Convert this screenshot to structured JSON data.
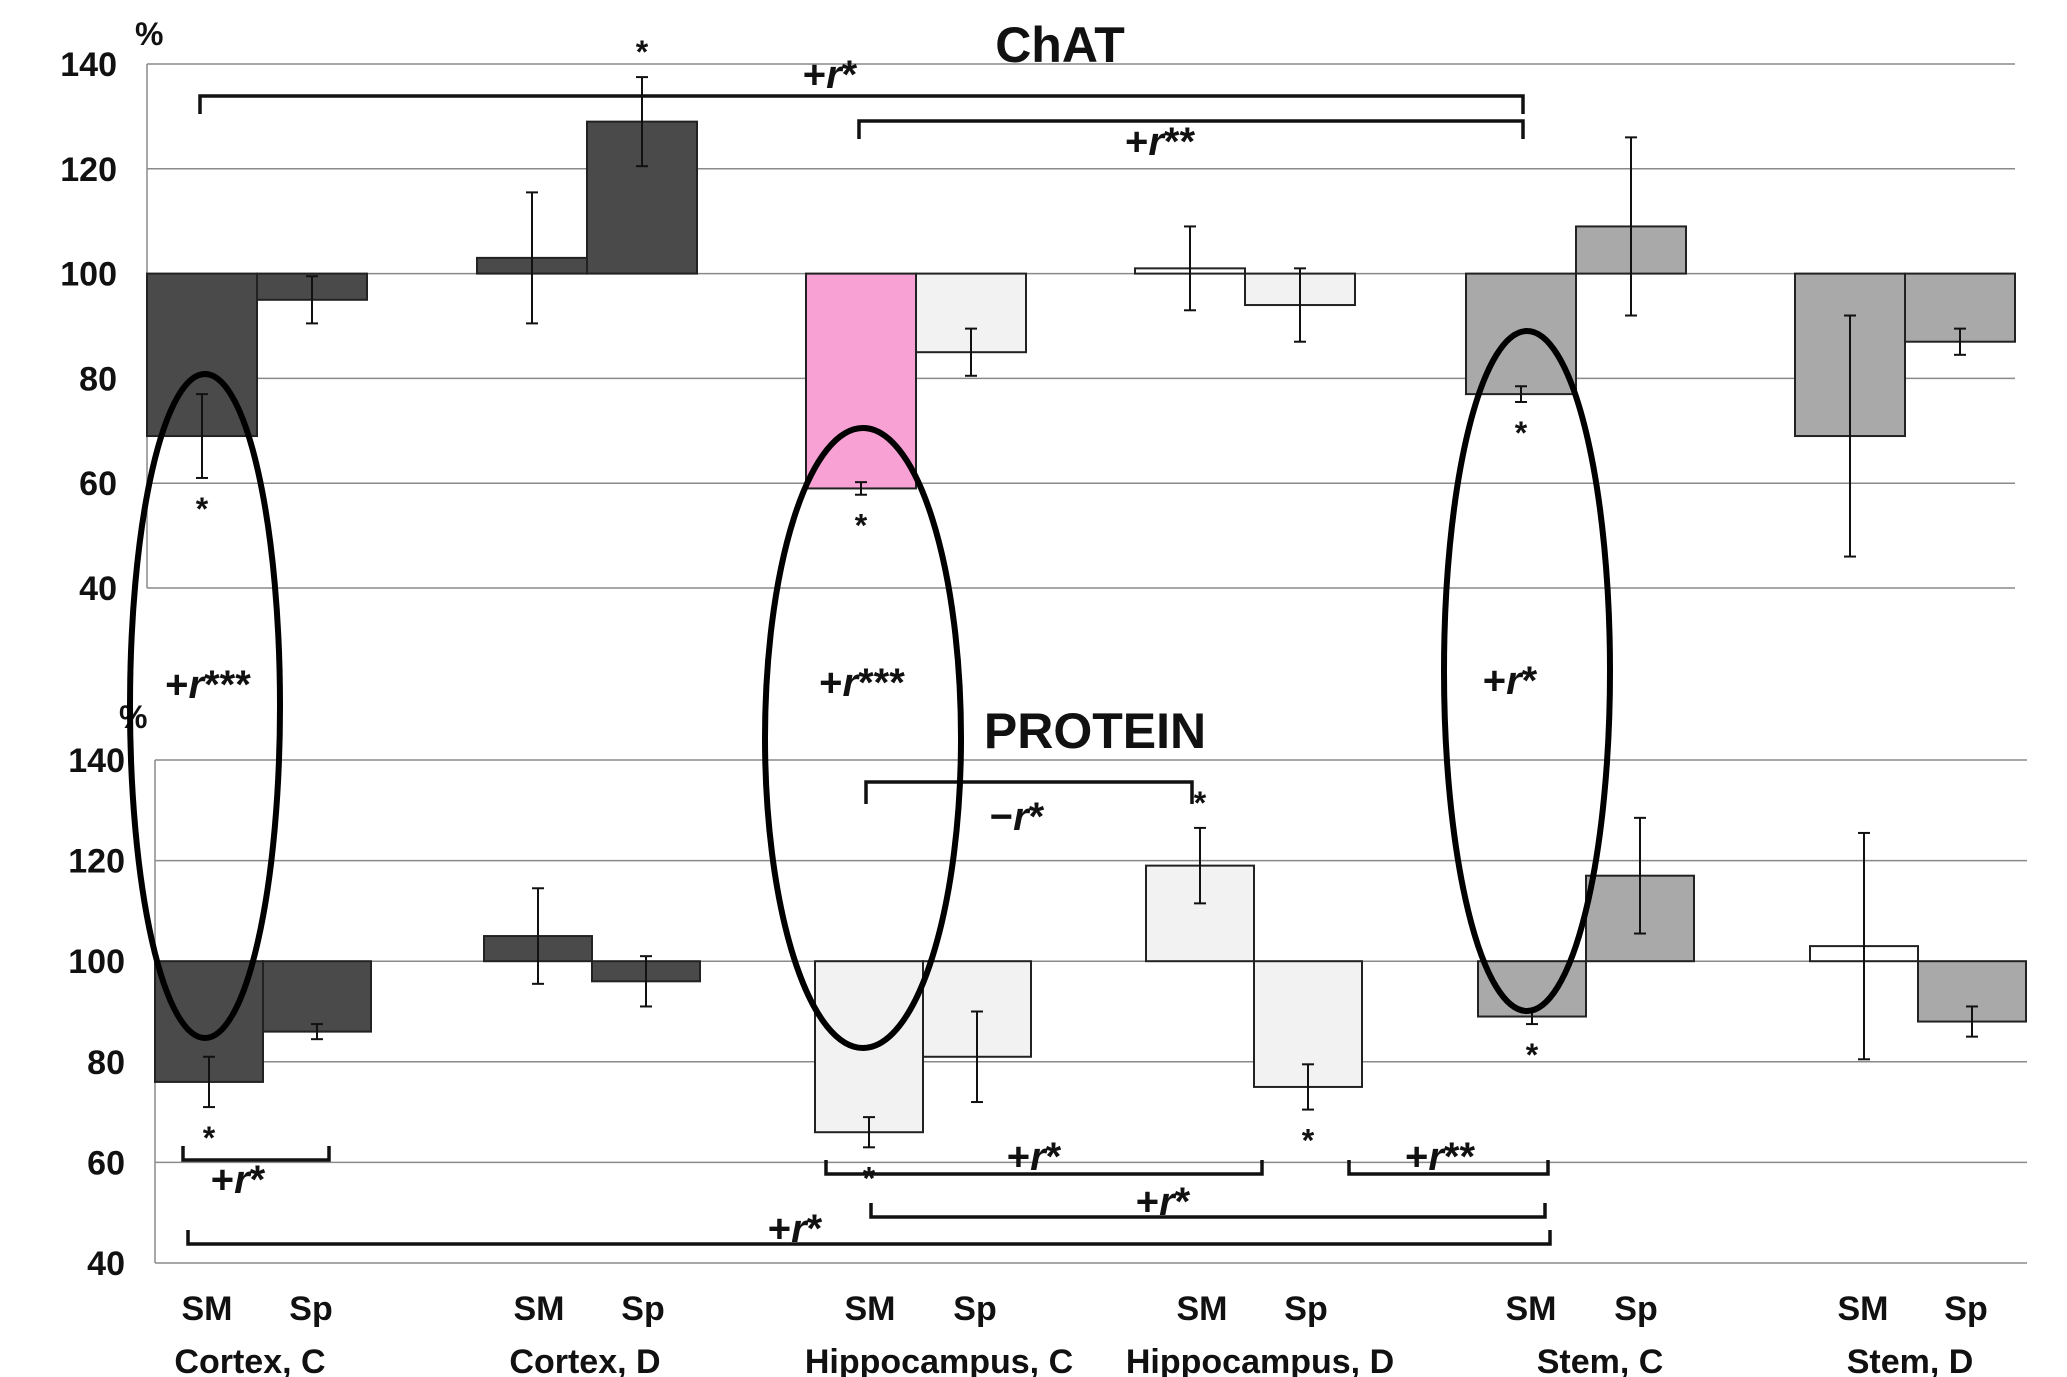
{
  "chart_data": [
    {
      "type": "bar",
      "title": "ChAT",
      "ylabel": "%",
      "ylim": [
        40,
        140
      ],
      "yticks": [
        40,
        60,
        80,
        100,
        120,
        140
      ],
      "baseline": 100,
      "categories": [
        "SM",
        "Sp",
        "SM",
        "Sp",
        "SM",
        "Sp",
        "SM",
        "Sp",
        "SM",
        "Sp",
        "SM",
        "Sp"
      ],
      "groups": [
        "Cortex,  C",
        "Cortex,  D",
        "Hippocampus, C",
        "Hippocampus, D",
        "Stem, C",
        "Stem, D"
      ],
      "values": [
        69,
        95,
        103,
        129,
        59,
        85,
        101,
        94,
        77,
        109,
        69,
        87
      ],
      "errors": [
        8,
        4.5,
        12.5,
        8.5,
        1.2,
        4.5,
        8,
        7,
        1.5,
        17,
        23,
        2.5
      ],
      "colors": [
        "#4a4a4a",
        "#4a4a4a",
        "#4a4a4a",
        "#4a4a4a",
        "#f7a1d4",
        "#f2f2f2",
        "#ffffff",
        "#f2f2f2",
        "#a9a9a9",
        "#a9a9a9",
        "#a9a9a9",
        "#a9a9a9"
      ],
      "stars": [
        "*",
        "",
        "",
        "*",
        "*",
        "",
        "",
        "",
        "*",
        "",
        "",
        ""
      ],
      "brackets": [
        {
          "from": 0,
          "to": 8,
          "label": "+r*"
        },
        {
          "from": 4,
          "to": 8,
          "label": "+r**"
        }
      ]
    },
    {
      "type": "bar",
      "title": "PROTEIN",
      "ylabel": "%",
      "ylim": [
        40,
        140
      ],
      "yticks": [
        40,
        60,
        80,
        100,
        120,
        140
      ],
      "baseline": 100,
      "categories": [
        "SM",
        "Sp",
        "SM",
        "Sp",
        "SM",
        "Sp",
        "SM",
        "Sp",
        "SM",
        "Sp",
        "SM",
        "Sp"
      ],
      "groups": [
        "Cortex,  C",
        "Cortex,  D",
        "Hippocampus, C",
        "Hippocampus, D",
        "Stem, C",
        "Stem, D"
      ],
      "values": [
        76,
        86,
        105,
        96,
        66,
        81,
        119,
        75,
        89,
        117,
        103,
        88
      ],
      "errors": [
        5,
        1.5,
        9.5,
        5,
        3,
        9,
        7.5,
        4.5,
        1.5,
        11.5,
        22.5,
        3
      ],
      "colors": [
        "#4a4a4a",
        "#4a4a4a",
        "#4a4a4a",
        "#4a4a4a",
        "#f2f2f2",
        "#f2f2f2",
        "#f2f2f2",
        "#f2f2f2",
        "#a9a9a9",
        "#a9a9a9",
        "#ffffff",
        "#a9a9a9"
      ],
      "stars": [
        "*",
        "",
        "",
        "",
        "*",
        "",
        "*",
        "*",
        "*",
        "",
        "",
        ""
      ],
      "brackets": [
        {
          "from": 4,
          "to": 6,
          "label": "−r*"
        },
        {
          "from": 0,
          "to": 1,
          "label": "+r*"
        },
        {
          "from": 4,
          "to": 6,
          "label": "+r*"
        },
        {
          "from": 7,
          "to": 8,
          "label": "+r**"
        },
        {
          "from": 4,
          "to": 8,
          "label": "+r*"
        },
        {
          "from": 0,
          "to": 8,
          "label": "+r*"
        }
      ]
    }
  ],
  "correlations": [
    {
      "bar": 0,
      "label": "+r***"
    },
    {
      "bar": 4,
      "label": "+r***"
    },
    {
      "bar": 8,
      "label": "+r*"
    }
  ]
}
